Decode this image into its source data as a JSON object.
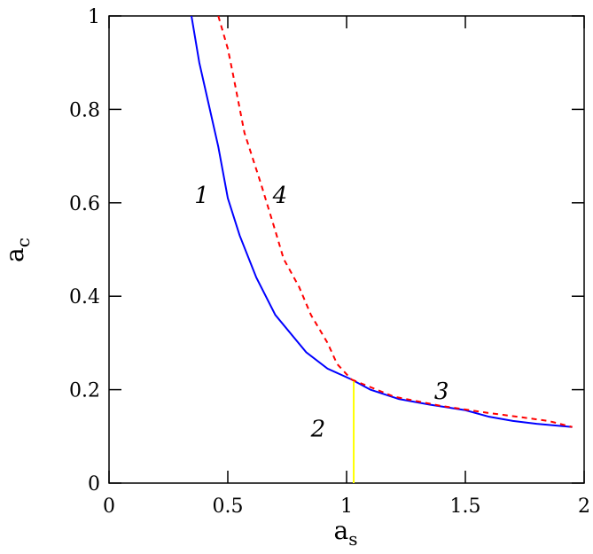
{
  "chart_data": {
    "type": "line",
    "xlabel": {
      "main": "a",
      "sub": "s"
    },
    "ylabel": {
      "main": "a",
      "sub": "c"
    },
    "xlim": [
      0,
      2
    ],
    "ylim": [
      0,
      1
    ],
    "xticks": [
      0,
      0.5,
      1,
      1.5,
      2
    ],
    "yticks": [
      0,
      0.2,
      0.4,
      0.6,
      0.8,
      1
    ],
    "series": [
      {
        "name": "1",
        "color": "#0000ff",
        "dashed": false,
        "x": [
          0.347,
          0.38,
          0.42,
          0.46,
          0.5,
          0.55,
          0.62,
          0.7,
          0.83,
          0.92,
          1.02,
          1.1,
          1.22,
          1.35,
          1.5,
          1.6,
          1.7,
          1.8,
          1.95
        ],
        "values": [
          1,
          0.9,
          0.81,
          0.72,
          0.61,
          0.53,
          0.44,
          0.36,
          0.28,
          0.245,
          0.222,
          0.2,
          0.18,
          0.168,
          0.156,
          0.142,
          0.133,
          0.127,
          0.12
        ]
      },
      {
        "name": "2",
        "color": "#ffff00",
        "dashed": false,
        "x": [
          1.03,
          1.03
        ],
        "values": [
          0.222,
          0
        ]
      },
      {
        "name": "3",
        "color": "#ff0000",
        "dashed": true,
        "x": [
          1.02,
          1.2,
          1.4,
          1.6,
          1.75,
          1.85,
          1.95
        ],
        "values": [
          0.222,
          0.185,
          0.165,
          0.15,
          0.14,
          0.133,
          0.12
        ]
      },
      {
        "name": "4",
        "color": "#ff0000",
        "dashed": true,
        "x": [
          0.46,
          0.5,
          0.52,
          0.57,
          0.64,
          0.7,
          0.735,
          0.8,
          0.85,
          0.92,
          0.96,
          1.02
        ],
        "values": [
          1,
          0.93,
          0.88,
          0.75,
          0.64,
          0.54,
          0.48,
          0.42,
          0.36,
          0.3,
          0.255,
          0.222
        ]
      }
    ]
  }
}
